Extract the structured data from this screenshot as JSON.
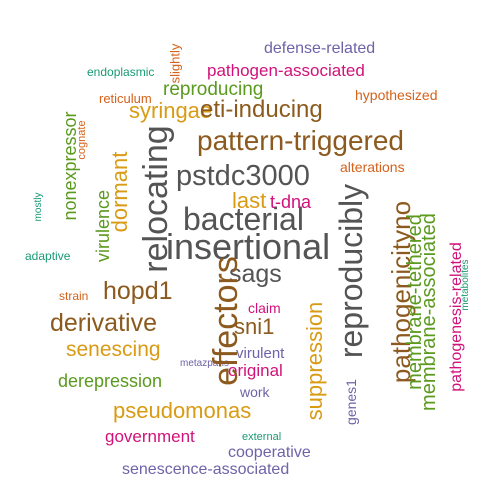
{
  "words": {
    "insertional": "insertional",
    "bacterial": "bacterial",
    "pstdc3000": "pstdc3000",
    "pattern_triggered": "pattern-triggered",
    "relocating": "relocating",
    "effectors": "effectors",
    "reproducibly": "reproducibly",
    "sags": "sags",
    "hopd1": "hopd1",
    "derivative": "derivative",
    "pathogenicityno": "pathogenicityno",
    "suppression": "suppression",
    "syringae": "syringae",
    "eti_inducing": "eti-inducing",
    "reproducing": "reproducing",
    "pathogen_associated": "pathogen-associated",
    "defense_related": "defense-related",
    "pseudomonas": "pseudomonas",
    "senescing": "senescing",
    "sni1": "sni1",
    "dormant": "dormant",
    "nonexpressor": "nonexpressor",
    "virulence": "virulence",
    "last": "last",
    "t_dna": "t-dna",
    "derepression": "derepression",
    "government": "government",
    "cooperative": "cooperative",
    "senescence_associated": "senescence-associated",
    "original": "original",
    "virulent": "virulent",
    "claim": "claim",
    "work": "work",
    "metazpans": "metazpans",
    "external": "external",
    "genes1": "genes1",
    "membrane_tethered": "membrane-tethered",
    "membrane_associated": "membrane-associated",
    "pathogenesis_related": "pathogenesis-related",
    "metabolites": "metabolites",
    "hypothesized": "hypothesized",
    "alterations": "alterations",
    "slightly": "slightly",
    "endoplasmic": "endoplasmic",
    "reticulum": "reticulum",
    "cognate": "cognate",
    "mostly": "mostly",
    "adaptive": "adaptive",
    "strain": "strain"
  },
  "colors": {
    "gray": "#545454",
    "brown": "#8c5a1e",
    "gold": "#d99b14",
    "green": "#5a9a1e",
    "magenta": "#d1127a",
    "purple": "#6e63a8",
    "teal": "#1a9a74",
    "orange": "#d4621a"
  }
}
